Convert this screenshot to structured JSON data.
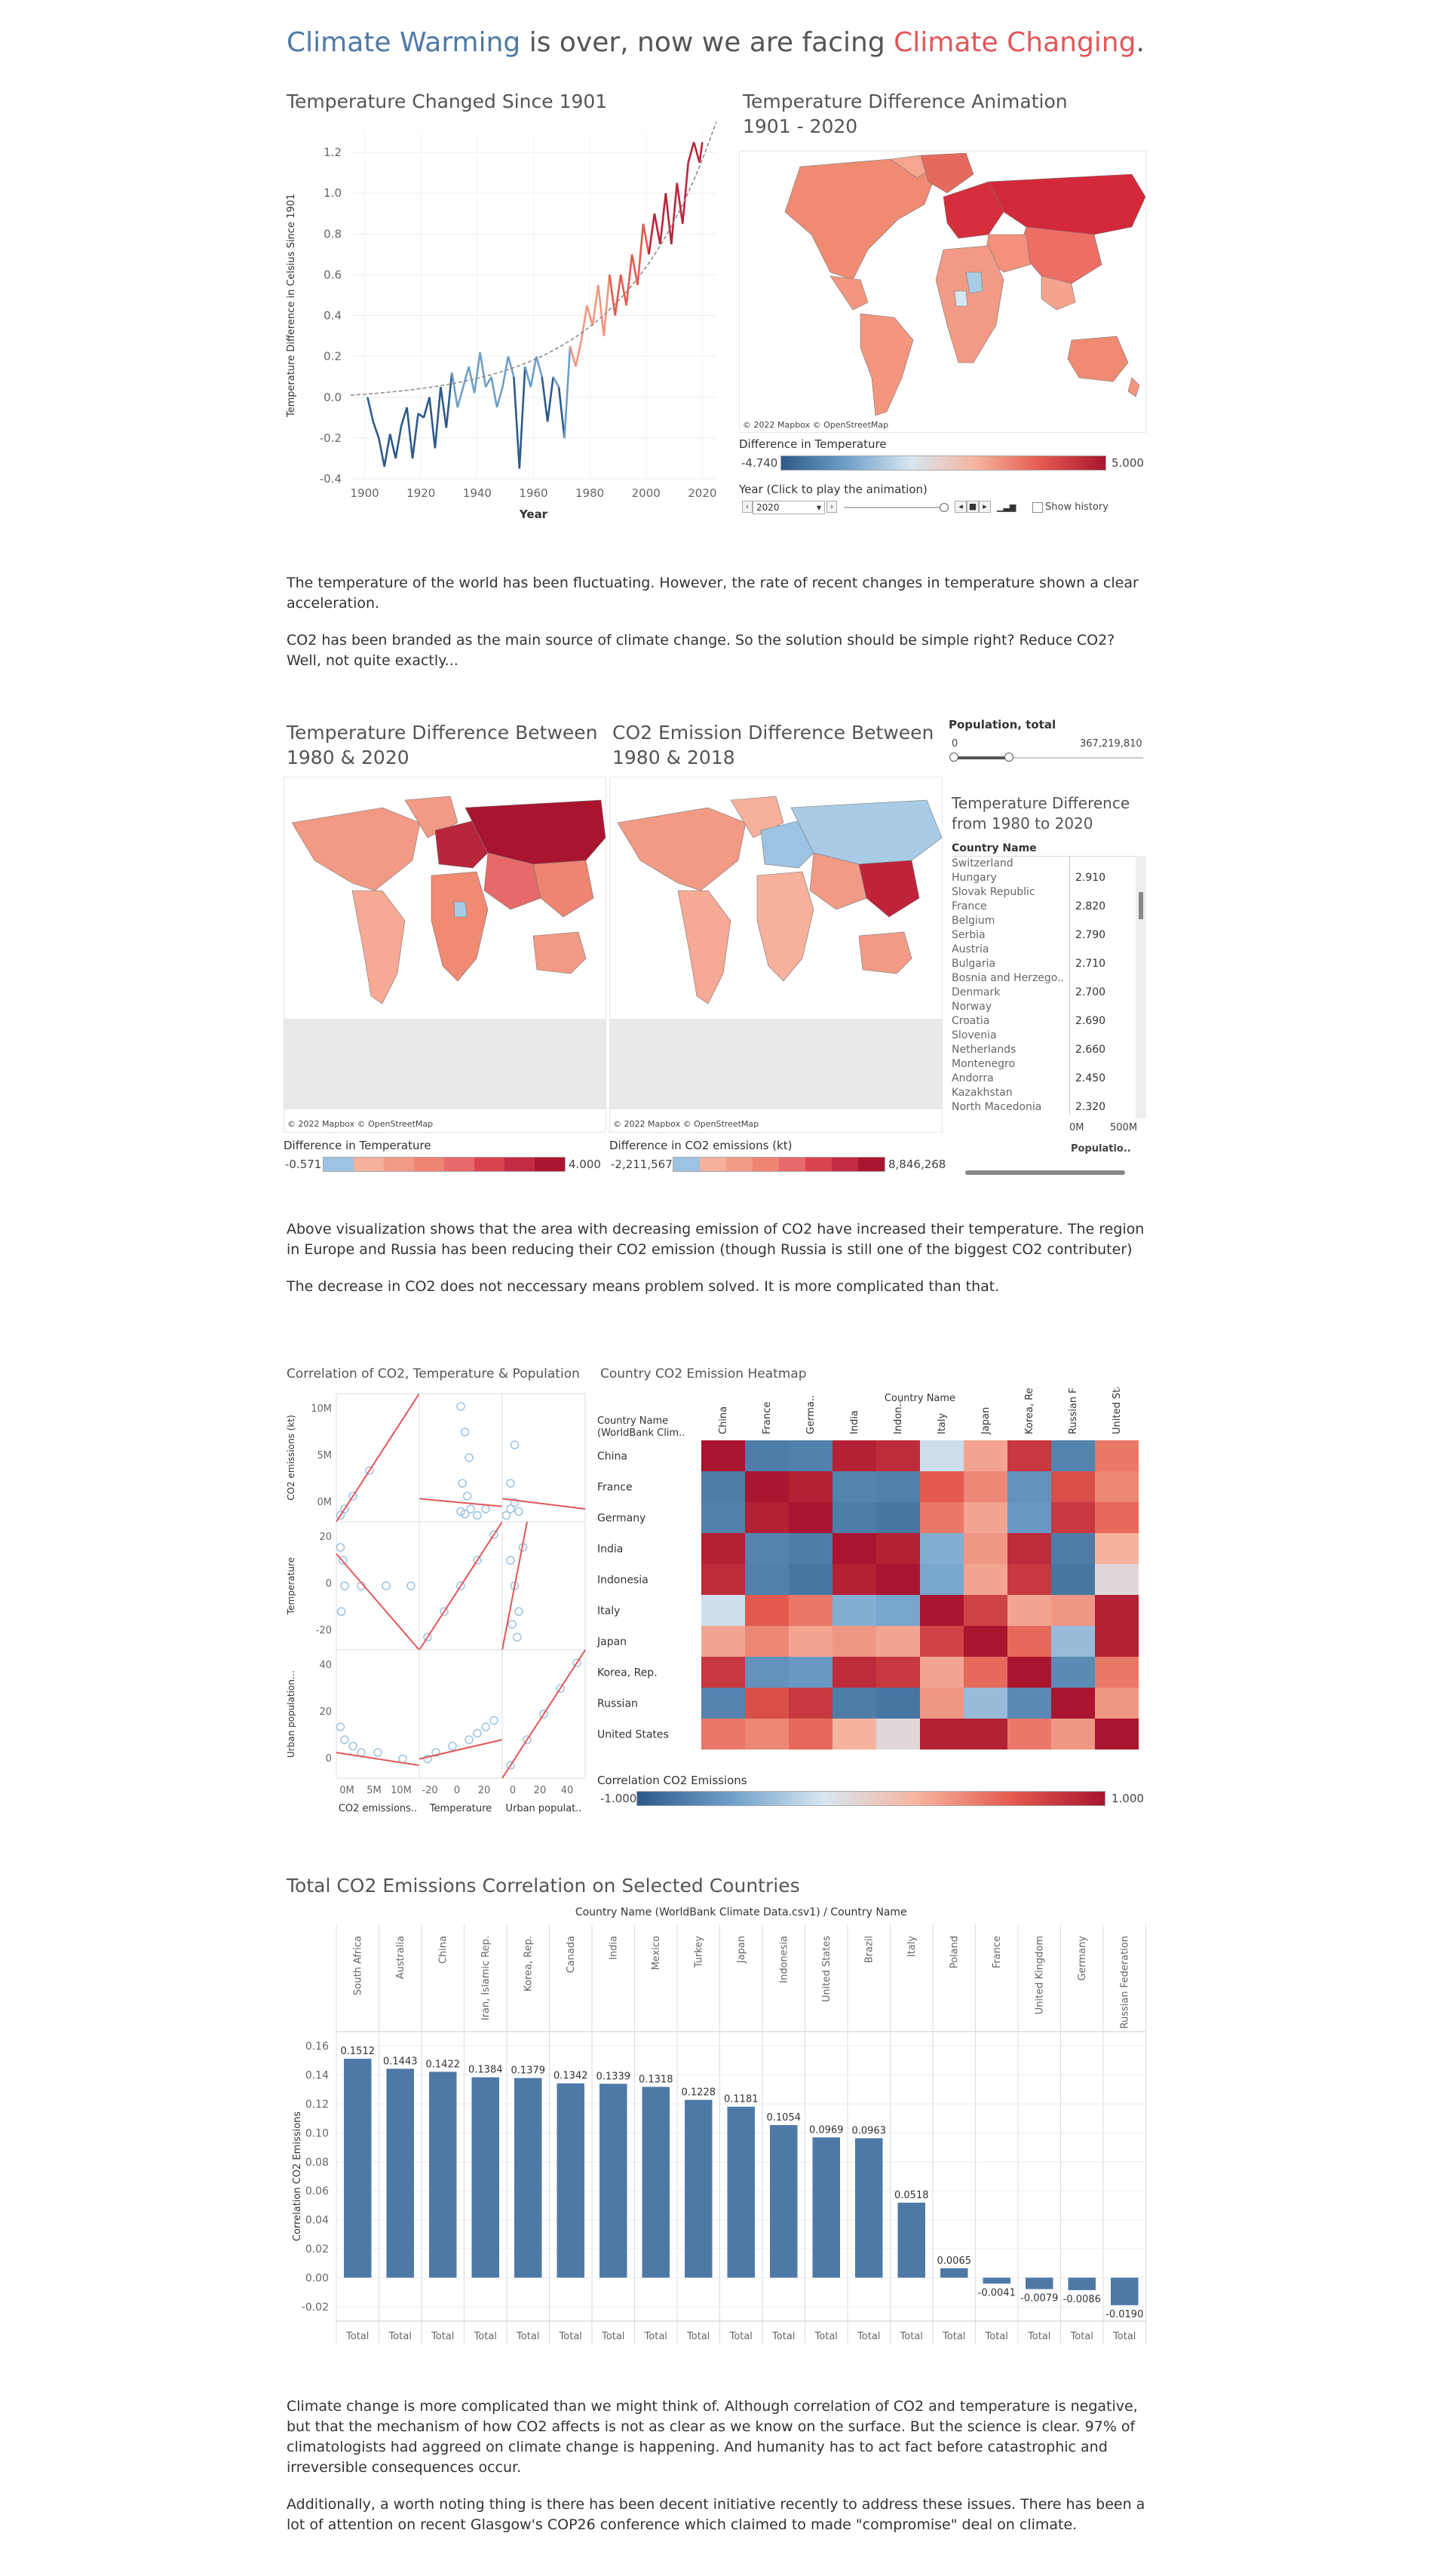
{
  "header": {
    "title_part1": "Climate Warming",
    "title_part2": " is over, now we are facing ",
    "title_part3": "Climate Changing",
    "title_part4": "."
  },
  "section1": {
    "line_title": "Temperature Changed Since 1901",
    "map_title_line1": "Temperature Difference Animation",
    "map_title_line2": "1901 - 2020",
    "map_attribution": "© 2022 Mapbox © OpenStreetMap",
    "legend_title": "Difference in Temperature",
    "legend_min": "-4.740",
    "legend_max": "5.000",
    "year_label": "Year (Click to play the animation)",
    "year_value": "2020",
    "show_history": "Show history"
  },
  "paragraphs1": [
    "The temperature of the world has been fluctuating. However, the rate of recent changes in temperature shown a clear acceleration.",
    "CO2 has been branded as the main source of climate change. So the solution should be simple right? Reduce CO2? Well, not quite exactly..."
  ],
  "section2": {
    "map1_title_line1": "Temperature Difference Between",
    "map1_title_line2": "1980 & 2020",
    "map2_title_line1": "CO2 Emission Difference Between",
    "map2_title_line2": "1980 & 2018",
    "attribution": "© 2022 Mapbox © OpenStreetMap",
    "legend1_title": "Difference in Temperature",
    "legend1_min": "-0.571",
    "legend1_max": "4.000",
    "legend2_title": "Difference in CO2 emissions (kt)",
    "legend2_min": "-2,211,567",
    "legend2_max": "8,846,268",
    "pop_title": "Population, total",
    "pop_min": "0",
    "pop_max": "367,219,810",
    "list_title_line1": "Temperature Difference",
    "list_title_line2": "from 1980 to 2020",
    "list_header": "Country Name",
    "countries": [
      "Switzerland",
      "Hungary",
      "Slovak Republic",
      "France",
      "Belgium",
      "Serbia",
      "Austria",
      "Bulgaria",
      "Bosnia and Herzego..",
      "Denmark",
      "Norway",
      "Croatia",
      "Slovenia",
      "Netherlands",
      "Montenegro",
      "Andorra",
      "Kazakhstan",
      "North Macedonia"
    ],
    "values": [
      "",
      "2.910",
      "",
      "2.820",
      "",
      "2.790",
      "",
      "2.710",
      "",
      "2.700",
      "",
      "2.690",
      "",
      "2.660",
      "",
      "2.450",
      "",
      "2.320"
    ],
    "pop_axis_0": "0M",
    "pop_axis_1": "500M",
    "pop_axis_label": "Populatio.."
  },
  "paragraphs2": [
    "Above visualization shows that the area with decreasing emission of CO2 have increased their temperature. The region in Europe and Russia has been reducing their CO2 emission (though Russia is still one of the biggest CO2 contributer)",
    "The decrease in CO2 does not neccessary means problem solved. It is more complicated than that."
  ],
  "section3": {
    "scatter_title": "Correlation of CO2, Temperature & Population",
    "heatmap_title": "Country CO2 Emission Heatmap",
    "heatmap_col_header": "Country Name",
    "heatmap_row_header_line1": "Country Name",
    "heatmap_row_header_line2": "(WorldBank Clim..",
    "heatmap_legend_title": "Correlation CO2 Emissions",
    "heatmap_legend_min": "-1.000",
    "heatmap_legend_max": "1.000",
    "scatter_row_labels": [
      "CO2 emissions (kt)",
      "Temperature",
      "Urban population growth (annual %)"
    ],
    "scatter_col_labels": [
      "CO2 emissions..",
      "Temperature",
      "Urban populat.."
    ],
    "scatter_y_ticks_row1": [
      "10M",
      "5M",
      "0M"
    ],
    "scatter_y_ticks_row2": [
      "20",
      "0",
      "-20"
    ],
    "scatter_y_ticks_row3": [
      "40",
      "20",
      "0"
    ],
    "scatter_x_ticks_col1": [
      "0M",
      "5M",
      "10M"
    ],
    "scatter_x_ticks_col2": [
      "-20",
      "0",
      "20"
    ],
    "scatter_x_ticks_col3": [
      "0",
      "20",
      "40"
    ]
  },
  "section4": {
    "title": "Total CO2 Emissions Correlation on Selected Countries",
    "column_header": "Country Name (WorldBank Climate Data.csv1)  /  Country Name",
    "total_label": "Total"
  },
  "paragraphs3": [
    "Climate change is more complicated than we might think of. Although correlation of CO2 and temperature is negative, but that the mechanism of how CO2 affects is not as clear as we know on the surface. But the science is clear. 97% of climatologists had aggreed on climate change is happening. And humanity has to act fact before catastrophic and irreversible consequences occur.",
    "Additionally, a worth noting thing is there has been decent initiative recently to address these issues. There has been a lot of attention on recent Glasgow's COP26 conference which claimed to made \"compromise\" deal on climate."
  ],
  "colors": {
    "blue": "#4e79a7",
    "red": "#e15759",
    "darkred": "#a9152f",
    "bar": "#4e79a7"
  },
  "chart_data": [
    {
      "type": "line",
      "title": "Temperature Changed Since 1901",
      "xlabel": "Year",
      "ylabel": "Temperature Difference in Celsius Since 1901",
      "xlim": [
        1895,
        2025
      ],
      "ylim": [
        -0.4,
        1.3
      ],
      "x_ticks": [
        1900,
        1920,
        1940,
        1960,
        1980,
        2000,
        2020
      ],
      "y_ticks": [
        -0.4,
        -0.2,
        0.0,
        0.2,
        0.4,
        0.6,
        0.8,
        1.0,
        1.2
      ],
      "series": [
        {
          "x": [
            1901,
            1903,
            1905,
            1907,
            1909,
            1911,
            1913,
            1915,
            1917,
            1919,
            1921,
            1923,
            1925,
            1927,
            1929,
            1931,
            1933,
            1935,
            1937,
            1939,
            1941,
            1943,
            1945,
            1947,
            1949,
            1951,
            1953,
            1955,
            1957,
            1959,
            1961,
            1963,
            1965,
            1967,
            1969,
            1971,
            1973,
            1975,
            1977,
            1979,
            1981,
            1983,
            1985,
            1987,
            1989,
            1991,
            1993,
            1995,
            1997,
            1999,
            2001,
            2003,
            2005,
            2007,
            2009,
            2011,
            2013,
            2015,
            2017,
            2019,
            2020
          ],
          "y": [
            0.0,
            -0.12,
            -0.2,
            -0.34,
            -0.18,
            -0.3,
            -0.14,
            -0.05,
            -0.3,
            -0.08,
            -0.1,
            0.0,
            -0.25,
            0.05,
            -0.15,
            0.12,
            -0.05,
            0.05,
            0.15,
            0.02,
            0.22,
            0.05,
            0.1,
            -0.05,
            0.05,
            0.2,
            0.1,
            -0.35,
            0.15,
            0.05,
            0.2,
            0.1,
            -0.12,
            0.1,
            0.05,
            -0.2,
            0.25,
            0.15,
            0.28,
            0.45,
            0.35,
            0.55,
            0.3,
            0.6,
            0.4,
            0.6,
            0.45,
            0.7,
            0.55,
            0.85,
            0.7,
            0.9,
            0.75,
            1.0,
            0.75,
            1.05,
            0.85,
            1.15,
            1.25,
            1.15,
            1.25
          ]
        }
      ],
      "trend": "exponential"
    },
    {
      "type": "heatmap",
      "title": "Country CO2 Emission Heatmap",
      "legend": "Correlation CO2 Emissions",
      "range": [
        -1,
        1
      ],
      "columns": [
        "China",
        "France",
        "Germa..",
        "India",
        "Indon..",
        "Italy",
        "Japan",
        "Korea, Rep.",
        "Russian Feder..",
        "United States"
      ],
      "rows": [
        "China",
        "France",
        "Germany",
        "India",
        "Indonesia",
        "Italy",
        "Japan",
        "Korea, Rep.",
        "Russian Federation",
        "United States"
      ],
      "values": [
        [
          1.0,
          -0.75,
          -0.72,
          0.95,
          0.9,
          -0.05,
          0.45,
          0.85,
          -0.7,
          0.6
        ],
        [
          -0.75,
          1.0,
          0.95,
          -0.7,
          -0.72,
          0.7,
          0.55,
          -0.6,
          0.75,
          0.55
        ],
        [
          -0.72,
          0.95,
          1.0,
          -0.75,
          -0.8,
          0.6,
          0.45,
          -0.55,
          0.85,
          0.65
        ],
        [
          0.95,
          -0.7,
          -0.75,
          1.0,
          0.95,
          -0.4,
          0.5,
          0.9,
          -0.75,
          0.4
        ],
        [
          0.9,
          -0.72,
          -0.8,
          0.95,
          1.0,
          -0.45,
          0.45,
          0.85,
          -0.8,
          0.12
        ],
        [
          -0.05,
          0.7,
          0.6,
          -0.4,
          -0.45,
          1.0,
          0.8,
          0.45,
          0.5,
          0.95
        ],
        [
          0.45,
          0.55,
          0.45,
          0.5,
          0.45,
          0.8,
          1.0,
          0.65,
          -0.3,
          0.95
        ],
        [
          0.85,
          -0.6,
          -0.55,
          0.9,
          0.85,
          0.45,
          0.65,
          1.0,
          -0.65,
          0.6
        ],
        [
          -0.7,
          0.75,
          0.85,
          -0.75,
          -0.8,
          0.5,
          -0.3,
          -0.65,
          1.0,
          0.5
        ],
        [
          0.6,
          0.55,
          0.65,
          0.4,
          0.12,
          0.95,
          0.95,
          0.6,
          0.5,
          1.0
        ]
      ]
    },
    {
      "type": "bar",
      "title": "Total CO2 Emissions Correlation on Selected Countries",
      "ylabel": "Correlation CO2 Emissions",
      "ylim": [
        -0.03,
        0.17
      ],
      "y_ticks": [
        -0.02,
        0.0,
        0.02,
        0.04,
        0.06,
        0.08,
        0.1,
        0.12,
        0.14,
        0.16
      ],
      "categories": [
        "South Africa",
        "Australia",
        "China",
        "Iran, Islamic Rep.",
        "Korea, Rep.",
        "Canada",
        "India",
        "Mexico",
        "Turkey",
        "Japan",
        "Indonesia",
        "United States",
        "Brazil",
        "Italy",
        "Poland",
        "France",
        "United Kingdom",
        "Germany",
        "Russian Federation"
      ],
      "values": [
        0.1512,
        0.1443,
        0.1422,
        0.1384,
        0.1379,
        0.1342,
        0.1339,
        0.1318,
        0.1228,
        0.1181,
        0.1054,
        0.0969,
        0.0963,
        0.0518,
        0.0065,
        -0.0041,
        -0.0079,
        -0.0086,
        -0.019
      ],
      "labels": [
        "0.1512",
        "0.1443",
        "0.1422",
        "0.1384",
        "0.1379",
        "0.1342",
        "0.1339",
        "0.1318",
        "0.1228",
        "0.1181",
        "0.1054",
        "0.0969",
        "0.0963",
        "0.0518",
        "0.0065",
        "-0.0041",
        "-0.0079",
        "-0.0086",
        "-0.0190"
      ]
    }
  ]
}
